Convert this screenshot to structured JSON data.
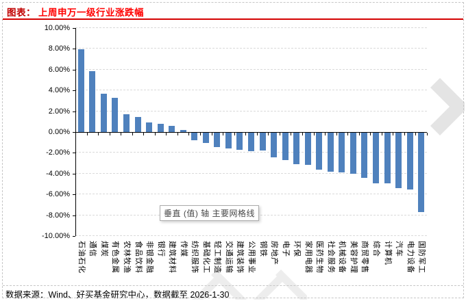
{
  "header": {
    "title_prefix": "图表：",
    "title": "上周申万一级行业涨跌幅"
  },
  "tooltip": {
    "text": "垂直 (值) 轴 主要网格线"
  },
  "footer": {
    "text": "数据来源：Wind、好买基金研究中心，数据截至 2026-1-30"
  },
  "colors": {
    "bar": "#4F81BD",
    "title_prefix": "#C00000",
    "title": "#FF0000",
    "underline": "#D40000",
    "gridline": "#D9D9D9",
    "axis": "#000000",
    "tooltip_border": "#ABABAB",
    "watermark": "#E5E5E5"
  },
  "chart_data": {
    "type": "bar",
    "title": "上周申万一级行业涨跌幅",
    "categories": [
      "石油石化",
      "通信",
      "煤炭",
      "有色金属",
      "农林牧渔",
      "食品饮料",
      "非银金融",
      "银行",
      "建筑材料",
      "传媒",
      "纺织服饰",
      "基础化工",
      "轻工制造",
      "交通运输",
      "建筑装饰",
      "公用事业",
      "钢铁",
      "房地产",
      "电子",
      "环保",
      "家用电器",
      "医药生物",
      "社会服务",
      "机械设备",
      "美容护理",
      "商贸零售",
      "综合",
      "计算机",
      "汽车",
      "电力设备",
      "国防军工"
    ],
    "values": [
      7.95,
      5.85,
      3.7,
      3.3,
      1.7,
      1.45,
      0.9,
      0.8,
      0.6,
      0.2,
      -0.7,
      -1.0,
      -1.4,
      -1.5,
      -1.65,
      -1.75,
      -1.7,
      -2.4,
      -2.65,
      -3.0,
      -3.1,
      -3.55,
      -3.75,
      -3.8,
      -3.95,
      -4.35,
      -4.9,
      -4.9,
      -5.3,
      -5.45,
      -7.65
    ],
    "unit": "%",
    "xlabel": "",
    "ylabel": "",
    "ylim": [
      -10,
      10
    ],
    "yticks": [
      10,
      8,
      6,
      4,
      2,
      0,
      -2,
      -4,
      -6,
      -8,
      -10
    ],
    "ytick_labels": [
      "10.00%",
      "8.00%",
      "6.00%",
      "4.00%",
      "2.00%",
      "0.00%",
      "-2.00%",
      "-4.00%",
      "-6.00%",
      "-8.00%",
      "-10.00%"
    ],
    "grid": "horizontal-dashed",
    "legend": "none",
    "bar_color": "#4F81BD"
  }
}
